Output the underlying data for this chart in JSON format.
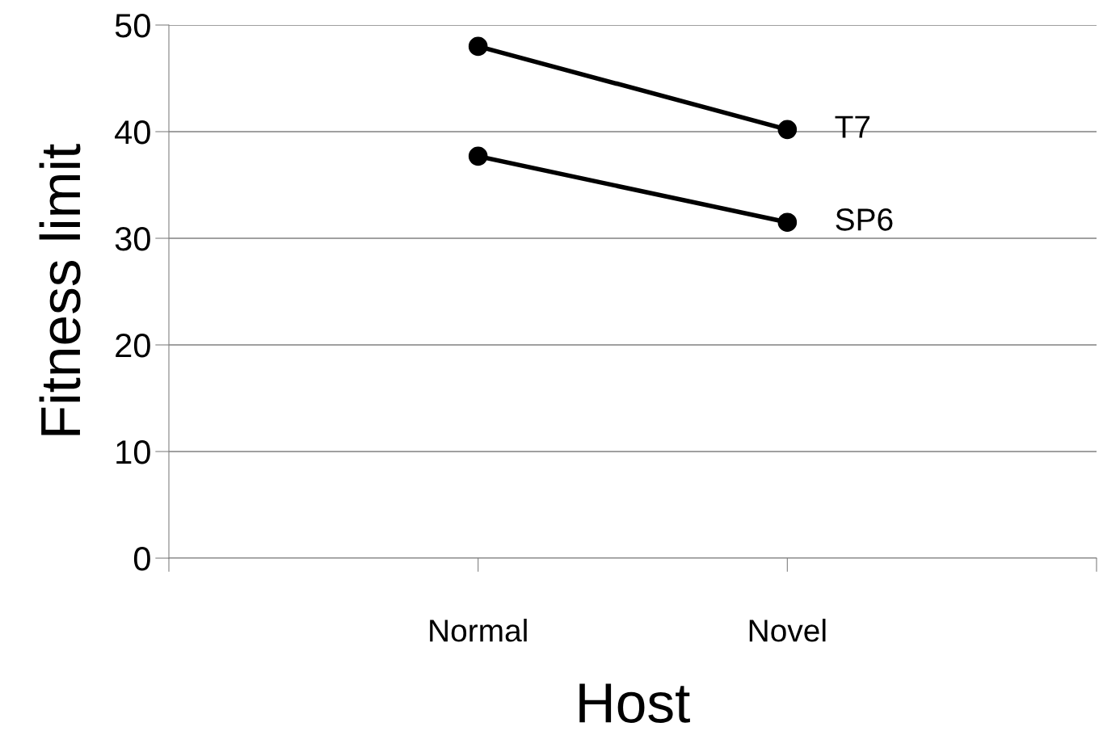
{
  "chart_data": {
    "type": "line",
    "xlabel": "Host",
    "ylabel": "Fitness limit",
    "categories": [
      null,
      "Normal",
      "Novel",
      null
    ],
    "series": [
      {
        "name": "T7",
        "color": "#000000",
        "values": [
          null,
          48,
          40.2,
          null
        ]
      },
      {
        "name": "SP6",
        "color": "#000000",
        "values": [
          null,
          37.7,
          31.5,
          null
        ]
      }
    ],
    "ylim": [
      0,
      50
    ],
    "yticks": [
      0,
      10,
      20,
      30,
      40,
      50
    ],
    "grid": "y",
    "legend": false,
    "marker": "circle",
    "line_style": "solid"
  }
}
